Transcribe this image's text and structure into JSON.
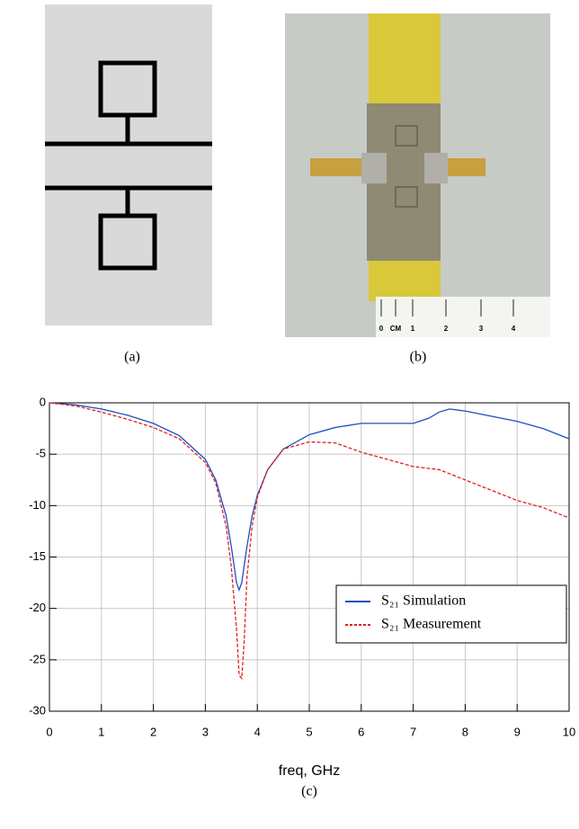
{
  "panels": {
    "labels": [
      "(a)",
      "(b)"
    ],
    "ruler_labels": [
      "0",
      "CM",
      "1",
      "2",
      "3",
      "4"
    ]
  },
  "chart_data": {
    "type": "line",
    "caption": "(c)",
    "x_label": "freq, GHz",
    "xlim": [
      0,
      10
    ],
    "xticks": [
      0,
      1,
      2,
      3,
      4,
      5,
      6,
      7,
      8,
      9,
      10
    ],
    "ylim": [
      -30,
      0
    ],
    "yticks": [
      0,
      -5,
      -10,
      -15,
      -20,
      -25,
      -30
    ],
    "grid": true,
    "legend": "lower right",
    "series": [
      {
        "name": "S₂₁ Simulation",
        "color": "#1f4fbf",
        "dash": false,
        "x": [
          0,
          0.5,
          1,
          1.5,
          2,
          2.5,
          3,
          3.2,
          3.4,
          3.5,
          3.6,
          3.65,
          3.7,
          3.8,
          3.9,
          4,
          4.2,
          4.5,
          5,
          5.5,
          6,
          6.5,
          7,
          7.3,
          7.5,
          7.7,
          8,
          8.5,
          9,
          9.5,
          10
        ],
        "values": [
          0,
          -0.2,
          -0.6,
          -1.2,
          -2.0,
          -3.2,
          -5.5,
          -7.5,
          -11,
          -14,
          -17.5,
          -18.2,
          -17.5,
          -14,
          -11,
          -9,
          -6.5,
          -4.5,
          -3.1,
          -2.4,
          -2.0,
          -2.0,
          -2.0,
          -1.5,
          -0.9,
          -0.6,
          -0.8,
          -1.3,
          -1.8,
          -2.5,
          -3.5
        ]
      },
      {
        "name": "S₂₁ Measurement",
        "color": "#e02020",
        "dash": true,
        "x": [
          0,
          0.5,
          1,
          1.5,
          2,
          2.5,
          3,
          3.2,
          3.4,
          3.5,
          3.6,
          3.65,
          3.7,
          3.75,
          3.8,
          3.9,
          4,
          4.2,
          4.5,
          5,
          5.5,
          6,
          6.5,
          7,
          7.5,
          8,
          8.5,
          9,
          9.5,
          10
        ],
        "values": [
          0,
          -0.3,
          -0.9,
          -1.6,
          -2.4,
          -3.5,
          -5.8,
          -7.8,
          -12,
          -16,
          -22,
          -26.5,
          -26.8,
          -23,
          -17,
          -12,
          -9.2,
          -6.5,
          -4.5,
          -3.8,
          -3.9,
          -4.8,
          -5.5,
          -6.2,
          -6.5,
          -7.5,
          -8.5,
          -9.5,
          -10.2,
          -11.2
        ]
      }
    ]
  }
}
